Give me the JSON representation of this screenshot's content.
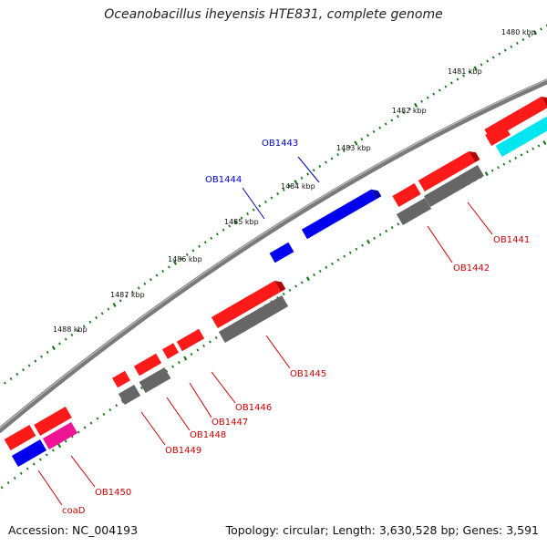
{
  "title": "Oceanobacillus iheyensis HTE831, complete genome",
  "footer": {
    "accession": "Accession: NC_004193",
    "stats": "Topology: circular; Length: 3,630,528 bp; Genes: 3,591"
  },
  "colors": {
    "backbone": "#808080",
    "tick": "#1a7a1a",
    "forward_gene": "#ff0000",
    "homolog": "#666666",
    "blue_gene": "#0000ee",
    "magenta_gene": "#ee1493",
    "cyan_gene": "#00e5ee",
    "label_red": "#cc0000",
    "label_blue": "#0000cc"
  },
  "kbp_markers": [
    {
      "label": "1480 kbp"
    },
    {
      "label": "1481 kbp"
    },
    {
      "label": "1482 kbp"
    },
    {
      "label": "1483 kbp"
    },
    {
      "label": "1484 kbp"
    },
    {
      "label": "1485 kbp"
    },
    {
      "label": "1486 kbp"
    },
    {
      "label": "1487 kbp"
    },
    {
      "label": "1488 kbp"
    }
  ],
  "gene_labels": [
    {
      "name": "OB1441",
      "color": "red"
    },
    {
      "name": "OB1442",
      "color": "red"
    },
    {
      "name": "OB1443",
      "color": "blue"
    },
    {
      "name": "OB1444",
      "color": "blue"
    },
    {
      "name": "OB1445",
      "color": "red"
    },
    {
      "name": "OB1446",
      "color": "red"
    },
    {
      "name": "OB1447",
      "color": "red"
    },
    {
      "name": "OB1448",
      "color": "red"
    },
    {
      "name": "OB1449",
      "color": "red"
    },
    {
      "name": "OB1450",
      "color": "red"
    },
    {
      "name": "coaD",
      "color": "red"
    }
  ]
}
